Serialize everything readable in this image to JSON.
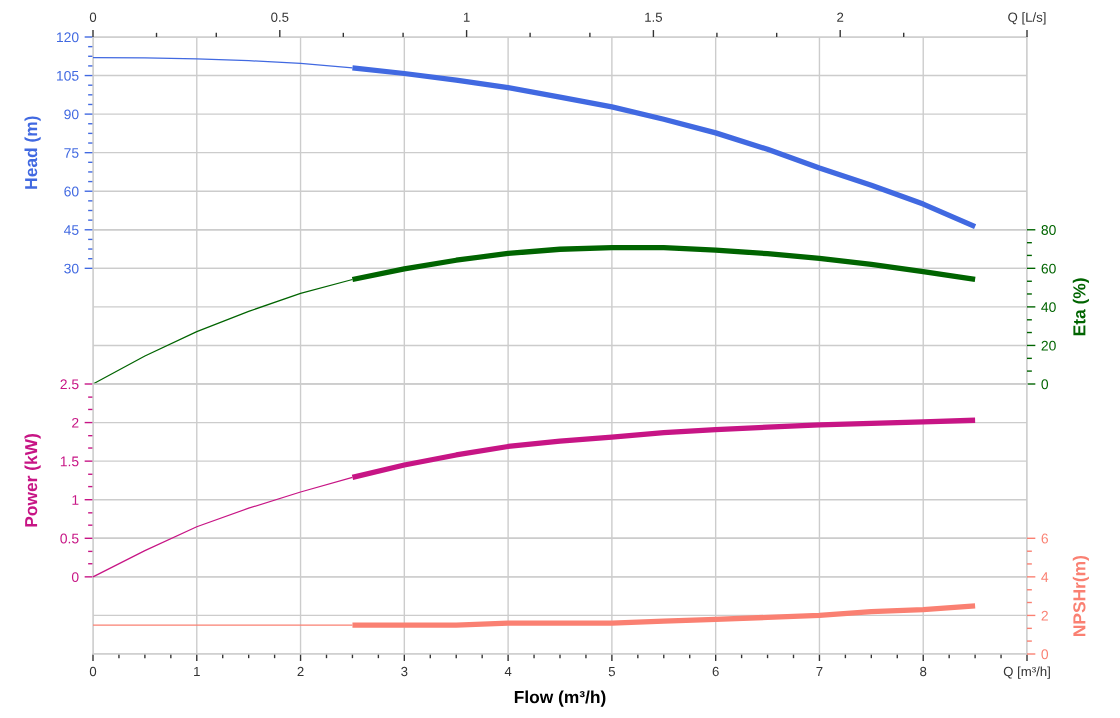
{
  "chart_data": [
    {
      "type": "line",
      "ylabel": "Head (m)",
      "y2label": "Eta (%)",
      "xlim": [
        0,
        9
      ],
      "xticks": [
        0,
        1,
        2,
        3,
        4,
        5,
        6,
        7,
        8,
        9
      ],
      "tick_labels": "y",
      "x2lim": [
        0,
        2.5
      ],
      "x2ticks": [
        0,
        {
          "value": 0.17,
          "label": null
        },
        {
          "value": 0.33,
          "label": null
        },
        0.5,
        {
          "value": 0.67,
          "label": null
        },
        {
          "value": 0.83,
          "label": null
        },
        1,
        {
          "value": 1.17,
          "label": null
        },
        {
          "value": 1.33,
          "label": null
        },
        1.5,
        {
          "value": 1.67,
          "label": null
        },
        {
          "value": 1.83,
          "label": null
        },
        2,
        {
          "value": 2.17,
          "label": null
        },
        {
          "value": 2.5,
          "label": "Q [L/s]"
        }
      ],
      "ylim": [
        -15,
        120
      ],
      "yticks": [
        30,
        {
          "value": 33.75,
          "label": null
        },
        {
          "value": 37.5,
          "label": null
        },
        {
          "value": 41.25,
          "label": null
        },
        45,
        {
          "value": 48.75,
          "label": null
        },
        {
          "value": 52.5,
          "label": null
        },
        {
          "value": 56.25,
          "label": null
        },
        60,
        {
          "value": 63.75,
          "label": null
        },
        {
          "value": 67.5,
          "label": null
        },
        {
          "value": 71.25,
          "label": null
        },
        75,
        {
          "value": 78.75,
          "label": null
        },
        {
          "value": 82.5,
          "label": null
        },
        {
          "value": 86.25,
          "label": null
        },
        90,
        {
          "value": 93.75,
          "label": null
        },
        {
          "value": 97.5,
          "label": null
        },
        {
          "value": 101.25,
          "label": null
        },
        105,
        {
          "value": 108.75,
          "label": null
        },
        {
          "value": 112.5,
          "label": null
        },
        {
          "value": 116.25,
          "label": null
        },
        120
      ],
      "y2lim": [
        0,
        180
      ],
      "y2ticks": [
        0,
        {
          "value": 6.7,
          "label": null
        },
        {
          "value": 13.3,
          "label": null
        },
        20,
        {
          "value": 26.7,
          "label": null
        },
        {
          "value": 33.3,
          "label": null
        },
        40,
        {
          "value": 46.7,
          "label": null
        },
        {
          "value": 53.3,
          "label": null
        },
        60,
        {
          "value": 66.7,
          "label": null
        },
        {
          "value": 73.3,
          "label": null
        },
        80
      ],
      "grid": true,
      "series": [
        {
          "color": "#4169e1",
          "x": [
            0,
            0.5,
            1,
            1.5,
            2,
            2.5
          ],
          "values": [
            112,
            111.9,
            111.5,
            110.8,
            109.7,
            108
          ]
        },
        {
          "color": "#4169e1",
          "x": [
            2.5,
            3,
            3.5,
            4,
            4.5,
            5,
            5.5,
            6,
            6.5,
            7,
            7.5,
            8,
            8.5
          ],
          "values": [
            108,
            105.8,
            103.2,
            100.3,
            96.6,
            92.8,
            88,
            82.7,
            76.3,
            69,
            62.3,
            55,
            46.2
          ]
        },
        {
          "axis": "y2",
          "color": "#006400",
          "x": [
            0,
            0.5,
            1,
            1.5,
            2,
            2.5
          ],
          "values": [
            0,
            14.5,
            27.2,
            37.7,
            47,
            54.2
          ]
        },
        {
          "axis": "y2",
          "color": "#006400",
          "x": [
            2.5,
            3,
            3.5,
            4,
            4.5,
            5,
            5.5,
            6,
            6.5,
            7,
            7.5,
            8,
            8.5
          ],
          "values": [
            54.2,
            59.7,
            64.2,
            67.7,
            69.9,
            70.7,
            70.7,
            69.5,
            67.6,
            65.2,
            62,
            58.3,
            54.3
          ]
        }
      ]
    },
    {
      "type": "line",
      "xlabel": "Flow (m³/h)",
      "ylabel": "Power (kW)",
      "y2label": "NPSHr(m)",
      "xlim": [
        0,
        9
      ],
      "xticks": [
        0,
        {
          "value": 0.25,
          "label": null
        },
        {
          "value": 0.5,
          "label": null
        },
        {
          "value": 0.75,
          "label": null
        },
        1,
        {
          "value": 1.25,
          "label": null
        },
        {
          "value": 1.5,
          "label": null
        },
        {
          "value": 1.75,
          "label": null
        },
        2,
        {
          "value": 2.25,
          "label": null
        },
        {
          "value": 2.5,
          "label": null
        },
        {
          "value": 2.75,
          "label": null
        },
        3,
        {
          "value": 3.25,
          "label": null
        },
        {
          "value": 3.5,
          "label": null
        },
        {
          "value": 3.75,
          "label": null
        },
        4,
        {
          "value": 4.25,
          "label": null
        },
        {
          "value": 4.5,
          "label": null
        },
        {
          "value": 4.75,
          "label": null
        },
        5,
        {
          "value": 5.25,
          "label": null
        },
        {
          "value": 5.5,
          "label": null
        },
        {
          "value": 5.75,
          "label": null
        },
        6,
        {
          "value": 6.25,
          "label": null
        },
        {
          "value": 6.5,
          "label": null
        },
        {
          "value": 6.75,
          "label": null
        },
        7,
        {
          "value": 7.25,
          "label": null
        },
        {
          "value": 7.5,
          "label": null
        },
        {
          "value": 7.75,
          "label": null
        },
        8,
        {
          "value": 8.25,
          "label": null
        },
        {
          "value": 8.5,
          "label": null
        },
        {
          "value": 8.75,
          "label": null
        },
        {
          "value": 9,
          "label": "Q [m³/h]"
        }
      ],
      "ylim": [
        -1,
        2.5
      ],
      "yticks": [
        0,
        {
          "value": 0.17,
          "label": null
        },
        {
          "value": 0.33,
          "label": null
        },
        0.5,
        {
          "value": 0.67,
          "label": null
        },
        {
          "value": 0.83,
          "label": null
        },
        1,
        {
          "value": 1.17,
          "label": null
        },
        {
          "value": 1.33,
          "label": null
        },
        1.5,
        {
          "value": 1.67,
          "label": null
        },
        {
          "value": 1.83,
          "label": null
        },
        2,
        {
          "value": 2.17,
          "label": null
        },
        {
          "value": 2.33,
          "label": null
        },
        2.5
      ],
      "y2lim": [
        0,
        14
      ],
      "y2ticks": [
        0,
        {
          "value": 0.67,
          "label": null
        },
        {
          "value": 1.33,
          "label": null
        },
        2,
        {
          "value": 2.67,
          "label": null
        },
        {
          "value": 3.33,
          "label": null
        },
        4,
        {
          "value": 4.67,
          "label": null
        },
        {
          "value": 5.33,
          "label": null
        },
        6
      ],
      "grid": true,
      "series": [
        {
          "color": "#c71585",
          "x": [
            0,
            0.5,
            1,
            1.5,
            2,
            2.5
          ],
          "values": [
            0,
            0.34,
            0.65,
            0.89,
            1.1,
            1.29
          ]
        },
        {
          "color": "#c71585",
          "x": [
            2.5,
            3,
            3.5,
            4,
            4.5,
            5,
            5.5,
            6,
            6.5,
            7,
            7.5,
            8,
            8.5
          ],
          "values": [
            1.29,
            1.45,
            1.58,
            1.69,
            1.76,
            1.81,
            1.87,
            1.91,
            1.94,
            1.97,
            1.99,
            2.01,
            2.03
          ]
        },
        {
          "axis": "y2",
          "color": "#fa8072",
          "x": [
            0,
            0.5,
            1,
            1.5,
            2,
            2.5
          ],
          "values": [
            1.5,
            1.5,
            1.5,
            1.5,
            1.5,
            1.5
          ]
        },
        {
          "axis": "y2",
          "color": "#fa8072",
          "x": [
            2.5,
            3,
            3.5,
            4,
            4.5,
            5,
            5.5,
            6,
            6.5,
            7,
            7.5,
            8,
            8.5
          ],
          "values": [
            1.5,
            1.5,
            1.5,
            1.6,
            1.6,
            1.6,
            1.7,
            1.8,
            1.9,
            2,
            2.2,
            2.3,
            2.5
          ]
        }
      ]
    }
  ]
}
